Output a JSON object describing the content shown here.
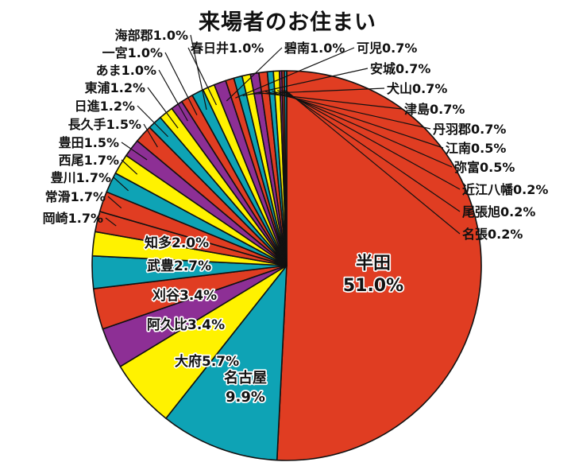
{
  "chart_data": {
    "type": "pie",
    "title": "来場者のお住まい",
    "start_angle": "12 o'clock",
    "direction": "clockwise",
    "slices": [
      {
        "label": "半田",
        "value": 51.0,
        "color": "#e03d22"
      },
      {
        "label": "名古屋",
        "value": 9.9,
        "color": "#0ea3b5"
      },
      {
        "label": "大府",
        "value": 5.7,
        "color": "#fff200"
      },
      {
        "label": "阿久比",
        "value": 3.4,
        "color": "#8d2f95"
      },
      {
        "label": "刈谷",
        "value": 3.4,
        "color": "#e03d22"
      },
      {
        "label": "武豊",
        "value": 2.7,
        "color": "#0ea3b5"
      },
      {
        "label": "知多",
        "value": 2.0,
        "color": "#fff200"
      },
      {
        "label": "岡崎",
        "value": 1.7,
        "color": "#e03d22"
      },
      {
        "label": "常滑",
        "value": 1.7,
        "color": "#e03d22"
      },
      {
        "label": "豊川",
        "value": 1.7,
        "color": "#0ea3b5"
      },
      {
        "label": "西尾",
        "value": 1.7,
        "color": "#fff200"
      },
      {
        "label": "豊田",
        "value": 1.5,
        "color": "#8d2f95"
      },
      {
        "label": "長久手",
        "value": 1.5,
        "color": "#e03d22"
      },
      {
        "label": "日進",
        "value": 1.2,
        "color": "#0ea3b5"
      },
      {
        "label": "東浦",
        "value": 1.2,
        "color": "#fff200"
      },
      {
        "label": "あま",
        "value": 1.0,
        "color": "#8d2f95"
      },
      {
        "label": "一宮",
        "value": 1.0,
        "color": "#e03d22"
      },
      {
        "label": "海部郡",
        "value": 1.0,
        "color": "#0ea3b5"
      },
      {
        "label": "春日井",
        "value": 1.0,
        "color": "#fff200"
      },
      {
        "label": "碧南",
        "value": 1.0,
        "color": "#8d2f95"
      },
      {
        "label": "可児",
        "value": 0.7,
        "color": "#e03d22"
      },
      {
        "label": "安城",
        "value": 0.7,
        "color": "#0ea3b5"
      },
      {
        "label": "犬山",
        "value": 0.7,
        "color": "#fff200"
      },
      {
        "label": "津島",
        "value": 0.7,
        "color": "#8d2f95"
      },
      {
        "label": "丹羽郡",
        "value": 0.7,
        "color": "#e03d22"
      },
      {
        "label": "江南",
        "value": 0.5,
        "color": "#0ea3b5"
      },
      {
        "label": "弥富",
        "value": 0.5,
        "color": "#fff200"
      },
      {
        "label": "近江八幡",
        "value": 0.2,
        "color": "#8d2f95"
      },
      {
        "label": "尾張旭",
        "value": 0.2,
        "color": "#e03d22"
      },
      {
        "label": "名張",
        "value": 0.2,
        "color": "#0ea3b5"
      }
    ],
    "value_text": [
      "51.0%",
      "9.9%",
      "5.7%",
      "3.4%",
      "3.4%",
      "2.7%",
      "2.0%",
      "1.7%",
      "1.7%",
      "1.7%",
      "1.7%",
      "1.5%",
      "1.5%",
      "1.2%",
      "1.2%",
      "1.0%",
      "1.0%",
      "1.0%",
      "1.0%",
      "1.0%",
      "0.7%",
      "0.7%",
      "0.7%",
      "0.7%",
      "0.7%",
      "0.5%",
      "0.5%",
      "0.2%",
      "0.2%",
      "0.2%"
    ]
  }
}
